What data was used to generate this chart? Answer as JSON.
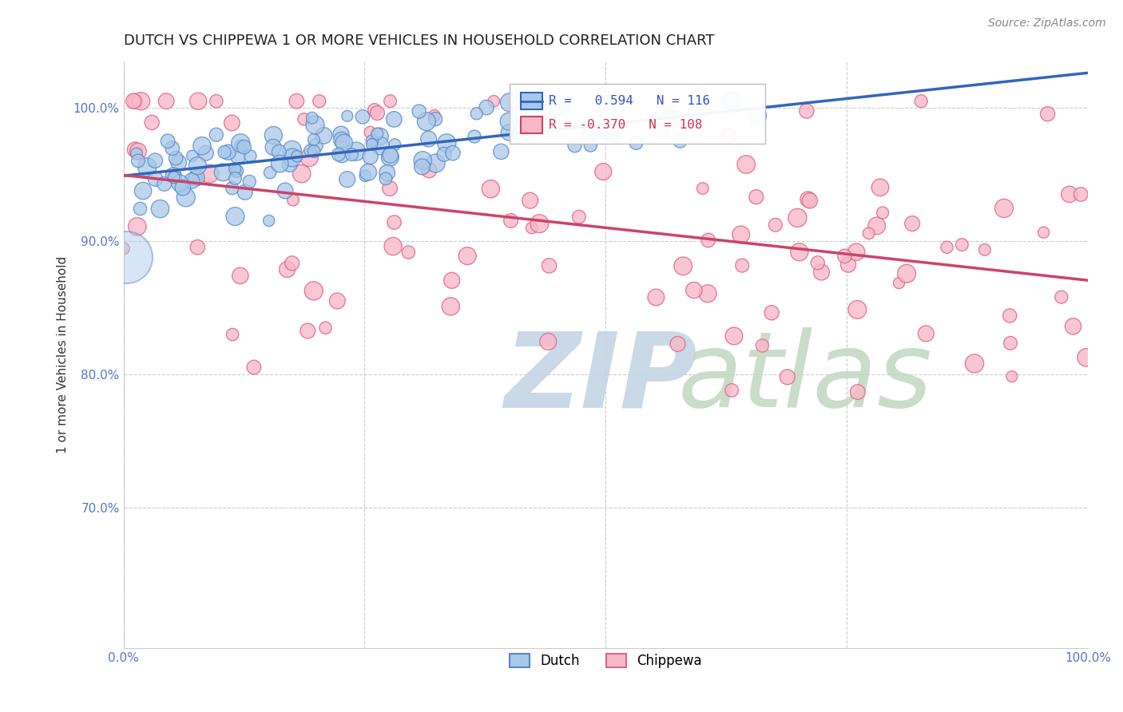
{
  "title": "DUTCH VS CHIPPEWA 1 OR MORE VEHICLES IN HOUSEHOLD CORRELATION CHART",
  "source": "Source: ZipAtlas.com",
  "ylabel": "1 or more Vehicles in Household",
  "dutch_R": 0.594,
  "dutch_N": 116,
  "chippewa_R": -0.37,
  "chippewa_N": 108,
  "dutch_color": "#a8c8e8",
  "dutch_edge_color": "#5588cc",
  "dutch_line_color": "#3366bb",
  "chippewa_color": "#f8b8c8",
  "chippewa_edge_color": "#dd6688",
  "chippewa_line_color": "#cc4466",
  "legend_box_color_dutch": "#a8c8e8",
  "legend_box_color_chippewa": "#f8b8c8",
  "background_color": "#ffffff",
  "grid_color": "#cccccc",
  "watermark_zip_color": "#c5d5e5",
  "watermark_atlas_color": "#c0d8c0",
  "xlim": [
    0.0,
    1.0
  ],
  "ylim": [
    0.595,
    1.035
  ],
  "yticks": [
    0.7,
    0.8,
    0.9,
    1.0
  ],
  "ytick_labels": [
    "70.0%",
    "80.0%",
    "90.0%",
    "100.0%"
  ],
  "title_fontsize": 13,
  "source_fontsize": 10,
  "label_fontsize": 11,
  "tick_fontsize": 11,
  "tick_color": "#5577cc"
}
